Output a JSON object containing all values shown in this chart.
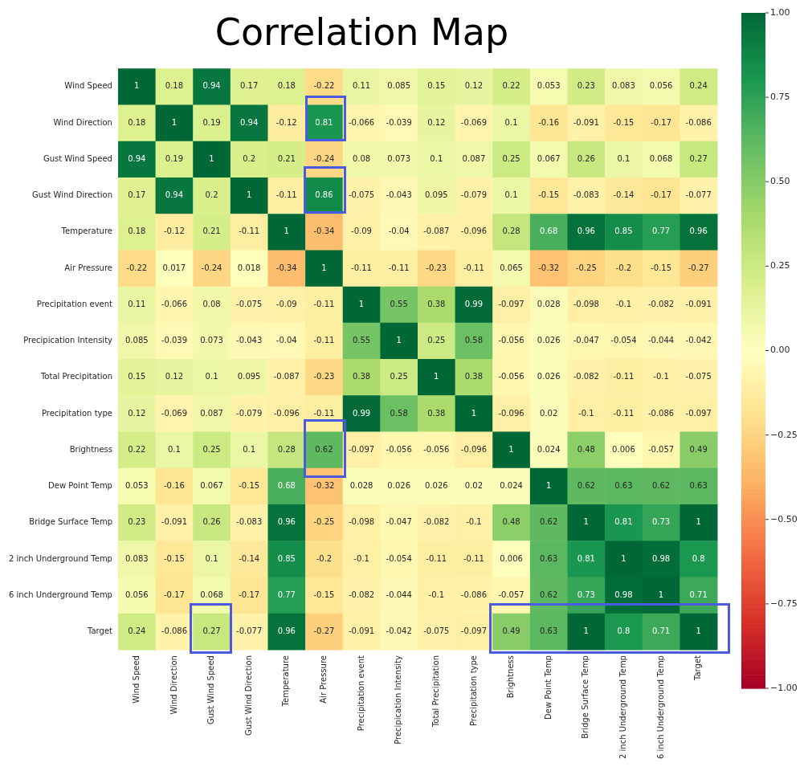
{
  "chart_data": {
    "type": "heatmap",
    "title": "Correlation Map",
    "categories": [
      "Wind Speed",
      "Wind Direction",
      "Gust Wind Speed",
      "Gust Wind Direction",
      "Temperature",
      "Air Pressure",
      "Precipitation event",
      "Precipication Intensity",
      "Total Precipitation",
      "Precipitation type",
      "Brightness",
      "Dew Point Temp",
      "Bridge Surface Temp",
      "2 inch Underground Temp",
      "6 inch Underground Temp",
      "Target"
    ],
    "y_categories": [
      "Wind Speed",
      "Wind Direction",
      "Gust Wind Speed",
      "Gust Wind Direction",
      "Temperature",
      "Air Pressure",
      "Precipitation event",
      "Precipication Intensity",
      "Total Precipitation",
      "Precipitation type",
      "Brightness",
      "Dew Point Temp",
      "Bridge Surface Temp",
      "2 inch Underground Temp",
      "6 inch Underground Temp",
      "Target"
    ],
    "cells": [
      [
        1,
        0.18,
        0.94,
        0.17,
        0.18,
        -0.22,
        0.11,
        0.085,
        0.15,
        0.12,
        0.22,
        0.053,
        0.23,
        0.083,
        0.056,
        0.24
      ],
      [
        0.18,
        1,
        0.19,
        0.94,
        -0.12,
        0.81,
        -0.066,
        -0.039,
        0.12,
        -0.069,
        0.1,
        -0.16,
        -0.091,
        -0.15,
        -0.17,
        -0.086
      ],
      [
        0.94,
        0.19,
        1,
        0.2,
        0.21,
        -0.24,
        0.08,
        0.073,
        0.1,
        0.087,
        0.25,
        0.067,
        0.26,
        0.1,
        0.068,
        0.27
      ],
      [
        0.17,
        0.94,
        0.2,
        1,
        -0.11,
        0.86,
        -0.075,
        -0.043,
        0.095,
        -0.079,
        0.1,
        -0.15,
        -0.083,
        -0.14,
        -0.17,
        -0.077
      ],
      [
        0.18,
        -0.12,
        0.21,
        -0.11,
        1,
        -0.34,
        -0.09,
        -0.04,
        -0.087,
        -0.096,
        0.28,
        0.68,
        0.96,
        0.85,
        0.77,
        0.96
      ],
      [
        -0.22,
        0.017,
        -0.24,
        0.018,
        -0.34,
        1,
        -0.11,
        -0.11,
        -0.23,
        -0.11,
        0.065,
        -0.32,
        -0.25,
        -0.2,
        -0.15,
        -0.27
      ],
      [
        0.11,
        -0.066,
        0.08,
        -0.075,
        -0.09,
        -0.11,
        1,
        0.55,
        0.38,
        0.99,
        -0.097,
        0.028,
        -0.098,
        -0.1,
        -0.082,
        -0.091
      ],
      [
        0.085,
        -0.039,
        0.073,
        -0.043,
        -0.04,
        -0.11,
        0.55,
        1,
        0.25,
        0.58,
        -0.056,
        0.026,
        -0.047,
        -0.054,
        -0.044,
        -0.042
      ],
      [
        0.15,
        0.12,
        0.1,
        0.095,
        -0.087,
        -0.23,
        0.38,
        0.25,
        1,
        0.38,
        -0.056,
        0.026,
        -0.082,
        -0.11,
        -0.1,
        -0.075
      ],
      [
        0.12,
        -0.069,
        0.087,
        -0.079,
        -0.096,
        -0.11,
        0.99,
        0.58,
        0.38,
        1,
        -0.096,
        0.02,
        -0.1,
        -0.11,
        -0.086,
        -0.097
      ],
      [
        0.22,
        0.1,
        0.25,
        0.1,
        0.28,
        0.62,
        -0.097,
        -0.056,
        -0.056,
        -0.096,
        1,
        0.024,
        0.48,
        0.006,
        -0.057,
        0.49
      ],
      [
        0.053,
        -0.16,
        0.067,
        -0.15,
        0.68,
        -0.32,
        0.028,
        0.026,
        0.026,
        0.02,
        0.024,
        1,
        0.62,
        0.63,
        0.62,
        0.63
      ],
      [
        0.23,
        -0.091,
        0.26,
        -0.083,
        0.96,
        -0.25,
        -0.098,
        -0.047,
        -0.082,
        -0.1,
        0.48,
        0.62,
        1,
        0.81,
        0.73,
        1
      ],
      [
        0.083,
        -0.15,
        0.1,
        -0.14,
        0.85,
        -0.2,
        -0.1,
        -0.054,
        -0.11,
        -0.11,
        0.006,
        0.63,
        0.81,
        1,
        0.98,
        0.8
      ],
      [
        0.056,
        -0.17,
        0.068,
        -0.17,
        0.77,
        -0.15,
        -0.082,
        -0.044,
        -0.1,
        -0.086,
        -0.057,
        0.62,
        0.73,
        0.98,
        1,
        0.71
      ],
      [
        0.24,
        -0.086,
        0.27,
        -0.077,
        0.96,
        -0.27,
        -0.091,
        -0.042,
        -0.075,
        -0.097,
        0.49,
        0.63,
        1,
        0.8,
        0.71,
        1
      ]
    ],
    "clim": [
      -1,
      1
    ],
    "cticks": [
      {
        "value": -1,
        "label": "−1.00"
      },
      {
        "value": -0.75,
        "label": "−0.75"
      },
      {
        "value": -0.5,
        "label": "−0.50"
      },
      {
        "value": -0.25,
        "label": "−0.25"
      },
      {
        "value": 0,
        "label": "0.00"
      },
      {
        "value": 0.25,
        "label": "0.25"
      },
      {
        "value": 0.5,
        "label": "0.50"
      },
      {
        "value": 0.75,
        "label": "0.75"
      },
      {
        "value": 1,
        "label": "1.00"
      }
    ],
    "data_labels": true
  }
}
